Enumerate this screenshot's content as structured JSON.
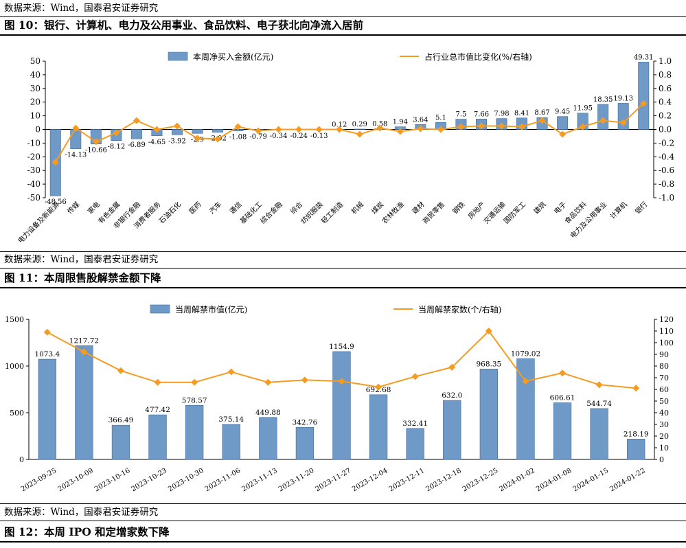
{
  "sections": {
    "src1": "数据来源：Wind，国泰君安证券研究",
    "fig10_title": "图 10：银行、计算机、电力及公用事业、食品饮料、电子获北向净流入居前",
    "src2": "数据来源：Wind，国泰君安证券研究",
    "fig11_title": "图 11：本周限售股解禁金额下降",
    "src3": "数据来源：Wind，国泰君安证券研究",
    "fig12_title": "图 12：本周 IPO 和定增家数下降"
  },
  "colors": {
    "bar": "#6f9ac8",
    "bar_stroke": "#3f6a99",
    "line": "#f59b21"
  },
  "chart_data": [
    {
      "type": "bar",
      "categories": [
        "电力设备及新能源",
        "传媒",
        "家电",
        "有色金属",
        "非银行金融",
        "消费者服务",
        "石油石化",
        "医药",
        "汽车",
        "通信",
        "基础化工",
        "综合金融",
        "综合",
        "纺织服装",
        "轻工制造",
        "机械",
        "煤炭",
        "农林牧渔",
        "建材",
        "商贸零售",
        "钢铁",
        "房地产",
        "交通运输",
        "国防军工",
        "建筑",
        "电子",
        "食品饮料",
        "电力及公用事业",
        "计算机",
        "银行"
      ],
      "series": [
        {
          "name": "本周净买入金额(亿元)",
          "type": "bar",
          "axis": "left",
          "values": [
            -48.56,
            -14.13,
            -10.66,
            -8.12,
            -6.89,
            -4.65,
            -3.92,
            -2.9,
            -2.02,
            -1.08,
            -0.79,
            -0.34,
            -0.24,
            -0.13,
            0.12,
            0.29,
            0.58,
            1.94,
            3.64,
            5.1,
            7.5,
            7.66,
            7.98,
            8.41,
            8.67,
            9.45,
            11.95,
            18.35,
            19.13,
            49.31
          ],
          "labels": [
            "-48.56",
            "-14.13",
            "-10.66",
            "-8.12",
            "-6.89",
            "-4.65",
            "-3.92",
            "-2.9",
            "-2.02",
            "-1.08",
            "-0.79",
            "-0.34",
            "-0.24",
            "-0.13",
            "0.12",
            "0.29",
            "0.58",
            "1.94",
            "3.64",
            "5.1",
            "7.5",
            "7.66",
            "7.98",
            "8.41",
            "8.67",
            "9.45",
            "11.95",
            "18.35",
            "19.13",
            "49.31"
          ]
        },
        {
          "name": "占行业总市值比变化(%/右轴)",
          "type": "line",
          "axis": "right",
          "values": [
            -0.48,
            0.02,
            -0.18,
            -0.05,
            0.13,
            0.0,
            0.05,
            -0.13,
            -0.14,
            0.04,
            -0.02,
            0.0,
            0.0,
            0.0,
            0.0,
            -0.07,
            0.02,
            -0.03,
            0.01,
            0.0,
            0.04,
            0.05,
            0.05,
            0.04,
            0.13,
            -0.07,
            0.04,
            0.13,
            0.1,
            0.38
          ]
        }
      ],
      "ylim": [
        -50,
        50
      ],
      "yticks": [
        -50,
        -40,
        -30,
        -20,
        -10,
        0,
        10,
        20,
        30,
        40,
        50
      ],
      "y2lim": [
        -1.0,
        1.0
      ],
      "y2ticks": [
        "-1.0",
        "-0.8",
        "-0.6",
        "-0.4",
        "-0.2",
        "0.0",
        "0.2",
        "0.4",
        "0.6",
        "0.8",
        "1.0"
      ],
      "legend": "top"
    },
    {
      "type": "bar",
      "categories": [
        "2023-09-25",
        "2023-10-09",
        "2023-10-16",
        "2023-10-23",
        "2023-10-30",
        "2023-11-06",
        "2023-11-13",
        "2023-11-20",
        "2023-11-27",
        "2023-12-04",
        "2023-12-11",
        "2023-12-18",
        "2023-12-25",
        "2024-01-02",
        "2024-01-08",
        "2024-01-15",
        "2024-01-22"
      ],
      "series": [
        {
          "name": "当周解禁市值(亿元)",
          "type": "bar",
          "axis": "left",
          "values": [
            1073.4,
            1217.72,
            366.49,
            477.42,
            578.57,
            375.14,
            449.88,
            342.76,
            1154.9,
            692.68,
            332.41,
            632.0,
            968.35,
            1079.02,
            606.61,
            544.74,
            218.19
          ],
          "labels": [
            "1073.4",
            "1217.72",
            "366.49",
            "477.42",
            "578.57",
            "375.14",
            "449.88",
            "342.76",
            "1154.9",
            "692.68",
            "332.41",
            "632.0",
            "968.35",
            "1079.02",
            "606.61",
            "544.74",
            "218.19"
          ]
        },
        {
          "name": "当周解禁家数(个/右轴)",
          "type": "line",
          "axis": "right",
          "values": [
            109,
            92,
            76,
            66,
            66,
            75,
            66,
            68,
            67,
            62,
            71,
            79,
            110,
            67,
            74,
            64,
            61
          ]
        }
      ],
      "ylim": [
        0,
        1500
      ],
      "yticks": [
        0,
        500,
        1000,
        1500
      ],
      "y2lim": [
        0,
        120
      ],
      "y2ticks": [
        0,
        10,
        20,
        30,
        40,
        50,
        60,
        70,
        80,
        90,
        100,
        110,
        120
      ],
      "legend": "top"
    }
  ]
}
